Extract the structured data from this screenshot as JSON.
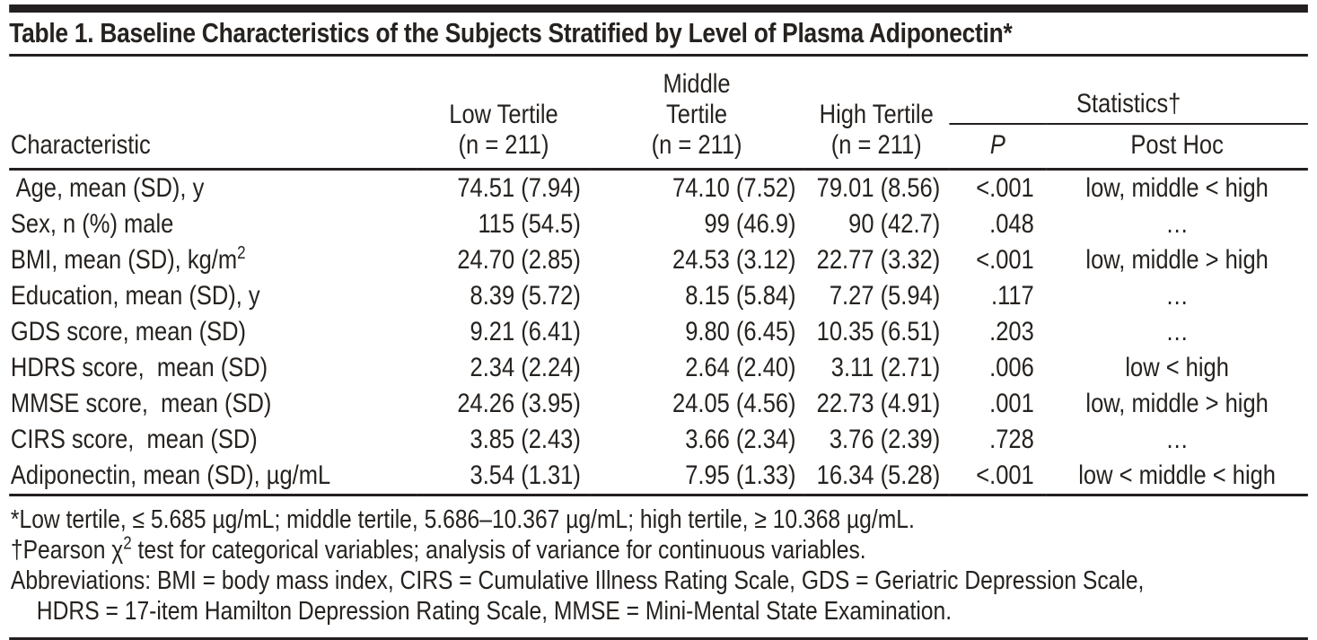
{
  "title": "Table 1. Baseline Characteristics of the Subjects Stratified by Level of Plasma Adiponectin*",
  "colors": {
    "rule_black": "#231f20",
    "text": "#26221f",
    "background": "#ffffff"
  },
  "table": {
    "header": {
      "characteristic": "Characteristic",
      "low": "Low Tertile\n(n = 211)",
      "middle": "Middle\nTertile\n(n = 211)",
      "high": "High Tertile\n(n = 211)",
      "statistics": "Statistics†",
      "p": "P",
      "post_hoc": "Post Hoc"
    },
    "rows": [
      {
        "label": [
          {
            "t": " Age, mean (SD), y"
          }
        ],
        "low": "74.51 (7.94)",
        "middle": "74.10 (7.52)",
        "high": "79.01 (8.56)",
        "p": "<.001",
        "post_hoc": "low, middle < high"
      },
      {
        "label": [
          {
            "t": "Sex, n (%) male"
          }
        ],
        "low": "115 (54.5)",
        "middle": "99 (46.9)",
        "high": "90 (42.7)",
        "p": ".048",
        "post_hoc": "…"
      },
      {
        "label": [
          {
            "t": "BMI, mean (SD), kg/m"
          },
          {
            "t": "2",
            "sup": true
          }
        ],
        "low": "24.70 (2.85)",
        "middle": "24.53 (3.12)",
        "high": "22.77 (3.32)",
        "p": "<.001",
        "post_hoc": "low, middle > high"
      },
      {
        "label": [
          {
            "t": "Education, mean (SD), y"
          }
        ],
        "low": "8.39 (5.72)",
        "middle": "8.15 (5.84)",
        "high": "7.27 (5.94)",
        "p": ".117",
        "post_hoc": "…"
      },
      {
        "label": [
          {
            "t": "GDS score, mean (SD)"
          }
        ],
        "low": "9.21 (6.41)",
        "middle": "9.80 (6.45)",
        "high": "10.35 (6.51)",
        "p": ".203",
        "post_hoc": "…"
      },
      {
        "label": [
          {
            "t": "HDRS score,  mean (SD)"
          }
        ],
        "low": "2.34 (2.24)",
        "middle": "2.64 (2.40)",
        "high": "3.11 (2.71)",
        "p": ".006",
        "post_hoc": "low < high"
      },
      {
        "label": [
          {
            "t": "MMSE score,  mean (SD)"
          }
        ],
        "low": "24.26 (3.95)",
        "middle": "24.05 (4.56)",
        "high": "22.73 (4.91)",
        "p": ".001",
        "post_hoc": "low, middle > high"
      },
      {
        "label": [
          {
            "t": "CIRS score,  mean (SD)"
          }
        ],
        "low": "3.85 (2.43)",
        "middle": "3.66 (2.34)",
        "high": "3.76 (2.39)",
        "p": ".728",
        "post_hoc": "…"
      },
      {
        "label": [
          {
            "t": "Adiponectin, mean (SD), µg/mL"
          }
        ],
        "low": "3.54 (1.31)",
        "middle": "7.95 (1.33)",
        "high": "16.34 (5.28)",
        "p": "<.001",
        "post_hoc": "low < middle < high"
      }
    ]
  },
  "footnotes": [
    {
      "indent": false,
      "segments": [
        {
          "t": "*Low tertile, ≤ 5.685 µg/mL; middle tertile, 5.686–10.367 µg/mL; high tertile, ≥ 10.368 µg/mL."
        }
      ]
    },
    {
      "indent": false,
      "segments": [
        {
          "t": "†Pearson χ"
        },
        {
          "t": "2",
          "sup": true
        },
        {
          "t": " test for categorical variables; analysis of variance for continuous variables."
        }
      ]
    },
    {
      "indent": false,
      "segments": [
        {
          "t": "Abbreviations: BMI = body mass index, CIRS = Cumulative Illness Rating Scale, GDS = Geriatric Depression Scale,"
        }
      ]
    },
    {
      "indent": true,
      "segments": [
        {
          "t": "HDRS = 17-item Hamilton Depression Rating Scale, MMSE = Mini-Mental State Examination."
        }
      ]
    }
  ]
}
